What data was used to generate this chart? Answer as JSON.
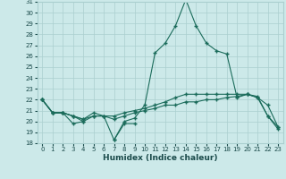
{
  "xlabel": "Humidex (Indice chaleur)",
  "x_values": [
    0,
    1,
    2,
    3,
    4,
    5,
    6,
    7,
    8,
    9,
    10,
    11,
    12,
    13,
    14,
    15,
    16,
    17,
    18,
    19,
    20,
    21,
    22,
    23
  ],
  "line_peak": [
    22.0,
    20.8,
    20.8,
    20.5,
    20.0,
    20.5,
    20.5,
    18.3,
    20.0,
    20.3,
    21.5,
    26.3,
    27.2,
    28.8,
    31.2,
    28.8,
    27.2,
    26.5,
    26.2,
    22.2,
    22.5,
    22.3,
    20.5,
    19.3
  ],
  "line_mid_high": [
    22.0,
    20.8,
    20.8,
    20.5,
    20.2,
    20.5,
    20.5,
    20.5,
    20.8,
    21.0,
    21.2,
    21.5,
    21.8,
    22.2,
    22.5,
    22.5,
    22.5,
    22.5,
    22.5,
    22.5,
    22.5,
    22.2,
    20.5,
    19.5
  ],
  "line_mid_low": [
    22.0,
    20.8,
    20.8,
    20.5,
    20.2,
    20.8,
    20.5,
    20.2,
    20.5,
    20.8,
    21.0,
    21.2,
    21.5,
    21.5,
    21.8,
    21.8,
    22.0,
    22.0,
    22.2,
    22.3,
    22.5,
    22.2,
    21.5,
    19.5
  ],
  "line_low_x": [
    0,
    1,
    2,
    3,
    4,
    7,
    8,
    9
  ],
  "line_low_y": [
    22.0,
    20.8,
    20.8,
    19.8,
    20.0,
    18.3,
    19.8,
    19.8
  ],
  "bg_color": "#cce9e9",
  "grid_color": "#aacfcf",
  "line_color": "#1a6b5a",
  "ylim": [
    18,
    31
  ],
  "yticks": [
    18,
    19,
    20,
    21,
    22,
    23,
    24,
    25,
    26,
    27,
    28,
    29,
    30,
    31
  ],
  "xticks": [
    0,
    1,
    2,
    3,
    4,
    5,
    6,
    7,
    8,
    9,
    10,
    11,
    12,
    13,
    14,
    15,
    16,
    17,
    18,
    19,
    20,
    21,
    22,
    23
  ]
}
